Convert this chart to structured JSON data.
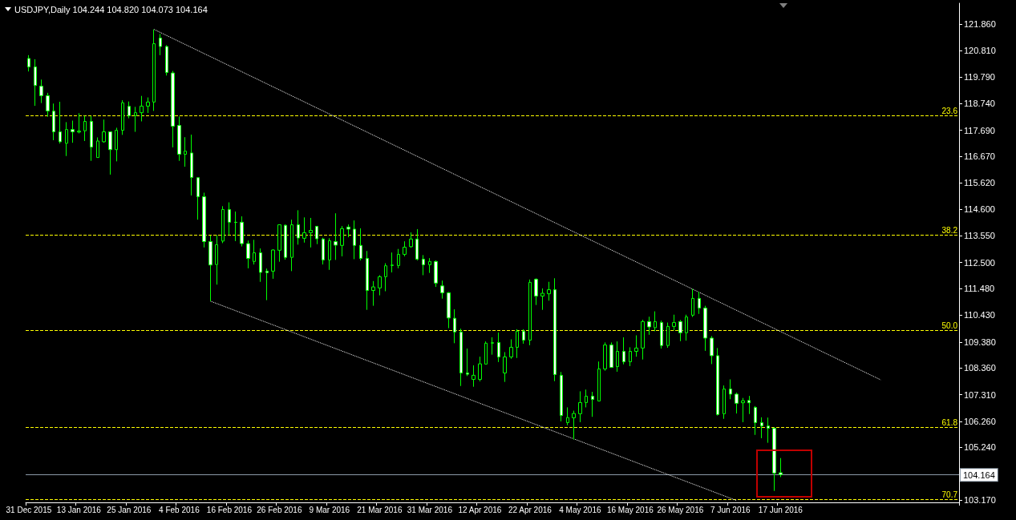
{
  "chart_data": {
    "type": "candlestick",
    "title": "USDJPY,Daily 104.244 104.820 104.073 104.164",
    "color": "#00ff00",
    "categories": [
      "31 Dec 2015",
      null,
      null,
      null,
      null,
      null,
      null,
      null,
      "13 Jan 2016",
      null,
      null,
      null,
      null,
      null,
      null,
      null,
      "25 Jan 2016",
      null,
      null,
      null,
      null,
      null,
      null,
      null,
      "4 Feb 2016",
      null,
      null,
      null,
      null,
      null,
      null,
      null,
      "16 Feb 2016",
      null,
      null,
      null,
      null,
      null,
      null,
      null,
      "26 Feb 2016",
      null,
      null,
      null,
      null,
      null,
      null,
      null,
      "9 Mar 2016",
      null,
      null,
      null,
      null,
      null,
      null,
      null,
      "21 Mar 2016",
      null,
      null,
      null,
      null,
      null,
      null,
      null,
      "31 Mar 2016",
      null,
      null,
      null,
      null,
      null,
      null,
      null,
      "12 Apr 2016",
      null,
      null,
      null,
      null,
      null,
      null,
      null,
      "22 Apr 2016",
      null,
      null,
      null,
      null,
      null,
      null,
      null,
      "4 May 2016",
      null,
      null,
      null,
      null,
      null,
      null,
      null,
      "16 May 2016",
      null,
      null,
      null,
      null,
      null,
      null,
      null,
      "26 May 2016",
      null,
      null,
      null,
      null,
      null,
      null,
      null,
      "7 Jun 2016",
      null,
      null,
      null,
      null,
      null,
      null,
      null,
      "17 Jun 2016",
      null,
      null,
      null,
      null,
      null,
      null,
      null,
      null,
      null,
      null,
      null,
      null,
      null,
      null,
      null,
      null,
      null,
      null,
      null,
      null,
      null,
      null,
      null,
      null,
      null,
      null,
      null,
      null
    ],
    "ohlc": [
      [
        120.51,
        120.64,
        120.0,
        120.18
      ],
      [
        120.18,
        120.48,
        118.65,
        119.45
      ],
      [
        119.42,
        119.68,
        118.76,
        119.05
      ],
      [
        119.05,
        119.16,
        118.22,
        118.45
      ],
      [
        118.44,
        118.74,
        117.3,
        117.63
      ],
      [
        117.63,
        118.81,
        117.17,
        117.24
      ],
      [
        117.18,
        118.01,
        116.68,
        117.72
      ],
      [
        117.72,
        118.07,
        117.2,
        117.63
      ],
      [
        117.62,
        118.36,
        117.57,
        117.66
      ],
      [
        117.67,
        118.26,
        117.27,
        118.04
      ],
      [
        118.04,
        118.25,
        116.49,
        117.03
      ],
      [
        116.62,
        117.41,
        116.62,
        117.27
      ],
      [
        117.24,
        118.11,
        117.2,
        117.63
      ],
      [
        117.63,
        117.63,
        115.95,
        116.93
      ],
      [
        116.93,
        117.79,
        116.47,
        117.69
      ],
      [
        117.69,
        118.87,
        117.51,
        118.77
      ],
      [
        118.63,
        118.82,
        118.16,
        118.26
      ],
      [
        118.27,
        118.61,
        117.63,
        118.38
      ],
      [
        118.38,
        119.04,
        118.04,
        118.64
      ],
      [
        118.64,
        118.98,
        118.37,
        118.8
      ],
      [
        118.8,
        121.65,
        118.45,
        121.09
      ],
      [
        121.31,
        121.47,
        120.64,
        120.98
      ],
      [
        120.98,
        121.03,
        119.84,
        119.96
      ],
      [
        119.94,
        120.02,
        117.02,
        117.85
      ],
      [
        117.88,
        118.23,
        116.49,
        116.75
      ],
      [
        116.75,
        117.42,
        116.26,
        116.87
      ],
      [
        116.8,
        117.52,
        115.13,
        115.84
      ],
      [
        115.83,
        115.83,
        114.18,
        115.08
      ],
      [
        115.08,
        115.24,
        113.09,
        113.32
      ],
      [
        113.32,
        113.56,
        110.98,
        112.4
      ],
      [
        112.42,
        113.57,
        111.63,
        113.2
      ],
      [
        113.34,
        114.71,
        113.26,
        114.58
      ],
      [
        114.58,
        114.86,
        113.57,
        114.08
      ],
      [
        114.08,
        114.5,
        113.34,
        114.07
      ],
      [
        114.08,
        114.31,
        113.13,
        113.24
      ],
      [
        113.24,
        113.36,
        112.27,
        112.66
      ],
      [
        112.54,
        113.39,
        112.42,
        112.88
      ],
      [
        112.88,
        113.05,
        111.74,
        112.11
      ],
      [
        112.16,
        112.26,
        111.02,
        112.1
      ],
      [
        112.16,
        113.02,
        111.86,
        112.99
      ],
      [
        112.98,
        113.98,
        112.53,
        113.98
      ],
      [
        113.96,
        113.99,
        112.61,
        112.7
      ],
      [
        112.7,
        114.18,
        112.16,
        113.98
      ],
      [
        113.98,
        114.55,
        113.2,
        113.46
      ],
      [
        113.45,
        114.27,
        113.28,
        113.67
      ],
      [
        113.67,
        114.25,
        113.09,
        113.76
      ],
      [
        113.92,
        113.92,
        113.22,
        113.43
      ],
      [
        113.42,
        113.47,
        112.42,
        112.6
      ],
      [
        112.6,
        113.45,
        112.21,
        113.35
      ],
      [
        113.32,
        114.43,
        112.6,
        113.18
      ],
      [
        113.17,
        113.93,
        112.74,
        113.83
      ],
      [
        113.89,
        113.99,
        113.49,
        113.81
      ],
      [
        113.81,
        114.15,
        112.63,
        113.17
      ],
      [
        113.17,
        113.84,
        112.58,
        112.66
      ],
      [
        112.66,
        112.95,
        110.64,
        111.4
      ],
      [
        111.4,
        111.77,
        110.8,
        111.54
      ],
      [
        111.5,
        112.0,
        111.21,
        111.94
      ],
      [
        111.94,
        112.47,
        111.37,
        112.37
      ],
      [
        112.38,
        112.89,
        112.11,
        112.4
      ],
      [
        112.38,
        113.03,
        112.27,
        112.82
      ],
      [
        112.82,
        113.33,
        112.74,
        113.1
      ],
      [
        113.12,
        113.68,
        113.08,
        113.42
      ],
      [
        113.42,
        113.81,
        112.58,
        112.63
      ],
      [
        112.63,
        112.79,
        112.0,
        112.41
      ],
      [
        112.41,
        112.67,
        112.09,
        112.54
      ],
      [
        112.54,
        112.58,
        111.54,
        111.69
      ],
      [
        111.58,
        111.79,
        111.08,
        111.31
      ],
      [
        111.31,
        111.34,
        109.92,
        110.32
      ],
      [
        110.31,
        110.66,
        109.33,
        109.77
      ],
      [
        109.77,
        109.9,
        107.65,
        108.16
      ],
      [
        108.16,
        109.12,
        108.04,
        108.11
      ],
      [
        107.91,
        108.46,
        107.62,
        108.07
      ],
      [
        107.91,
        108.8,
        107.83,
        108.52
      ],
      [
        108.51,
        109.4,
        108.51,
        109.33
      ],
      [
        109.33,
        109.56,
        108.88,
        109.35
      ],
      [
        109.36,
        109.75,
        108.59,
        108.79
      ],
      [
        108.16,
        108.98,
        107.81,
        108.79
      ],
      [
        108.79,
        109.48,
        108.72,
        109.17
      ],
      [
        109.17,
        109.88,
        108.75,
        109.8
      ],
      [
        109.8,
        109.88,
        109.31,
        109.45
      ],
      [
        109.45,
        111.83,
        109.25,
        111.72
      ],
      [
        111.84,
        111.88,
        110.83,
        111.18
      ],
      [
        111.18,
        111.48,
        110.64,
        111.29
      ],
      [
        111.27,
        111.74,
        111.0,
        111.43
      ],
      [
        111.43,
        111.88,
        107.84,
        108.1
      ],
      [
        108.07,
        108.2,
        106.26,
        106.49
      ],
      [
        106.21,
        106.81,
        106.11,
        106.41
      ],
      [
        106.4,
        106.68,
        105.55,
        106.57
      ],
      [
        106.56,
        107.44,
        106.23,
        107.0
      ],
      [
        107.0,
        107.51,
        106.81,
        107.25
      ],
      [
        107.25,
        107.42,
        106.44,
        107.12
      ],
      [
        107.06,
        108.61,
        107.06,
        108.32
      ],
      [
        108.32,
        109.36,
        108.25,
        109.26
      ],
      [
        109.26,
        109.36,
        108.36,
        108.38
      ],
      [
        108.41,
        109.4,
        108.21,
        109.01
      ],
      [
        109.01,
        109.56,
        108.5,
        108.6
      ],
      [
        108.6,
        109.17,
        108.43,
        109.01
      ],
      [
        109.01,
        109.64,
        108.8,
        109.14
      ],
      [
        109.14,
        110.25,
        108.69,
        110.18
      ],
      [
        110.18,
        110.37,
        109.66,
        109.97
      ],
      [
        109.94,
        110.58,
        109.8,
        110.18
      ],
      [
        110.14,
        110.22,
        109.12,
        109.24
      ],
      [
        109.24,
        110.14,
        109.15,
        109.99
      ],
      [
        109.99,
        110.45,
        109.83,
        110.14
      ],
      [
        110.18,
        110.24,
        109.41,
        109.74
      ],
      [
        109.74,
        110.45,
        109.43,
        110.36
      ],
      [
        110.43,
        111.46,
        110.36,
        111.09
      ],
      [
        111.09,
        111.35,
        110.48,
        110.71
      ],
      [
        110.71,
        110.8,
        109.03,
        109.53
      ],
      [
        109.53,
        109.61,
        108.51,
        108.84
      ],
      [
        108.84,
        109.14,
        106.49,
        106.53
      ],
      [
        106.56,
        107.67,
        106.36,
        107.53
      ],
      [
        107.53,
        107.91,
        107.13,
        107.33
      ],
      [
        107.33,
        107.39,
        106.57,
        106.97
      ],
      [
        106.99,
        107.18,
        106.23,
        107.07
      ],
      [
        107.08,
        107.26,
        106.55,
        106.99
      ],
      [
        106.81,
        106.86,
        105.73,
        106.21
      ],
      [
        106.21,
        106.42,
        105.6,
        106.08
      ],
      [
        106.08,
        106.41,
        105.42,
        105.99
      ],
      [
        105.99,
        106.02,
        103.53,
        104.23
      ],
      [
        104.244,
        104.82,
        104.073,
        104.164
      ],
      null,
      null,
      null,
      null,
      null,
      null,
      null,
      null,
      null,
      null,
      null,
      null,
      null,
      null,
      null,
      null,
      null,
      null,
      null,
      null,
      null,
      null,
      null,
      null,
      null,
      null,
      null,
      null
    ],
    "series": [
      {
        "type": "line",
        "color": "#ffffff",
        "line_style": "dotted",
        "values": [
          null,
          null,
          null,
          null,
          null,
          null,
          null,
          null,
          null,
          null,
          null,
          null,
          null,
          null,
          null,
          null,
          null,
          null,
          null,
          null,
          121.65,
          null,
          null,
          null,
          null,
          null,
          null,
          null,
          null,
          null,
          null,
          null,
          null,
          null,
          null,
          null,
          null,
          null,
          null,
          null,
          null,
          null,
          null,
          null,
          null,
          null,
          null,
          null,
          null,
          null,
          null,
          null,
          null,
          null,
          null,
          null,
          null,
          null,
          null,
          null,
          null,
          null,
          null,
          null,
          null,
          null,
          null,
          null,
          null,
          null,
          null,
          null,
          null,
          null,
          null,
          null,
          null,
          null,
          null,
          null,
          null,
          null,
          null,
          null,
          null,
          null,
          null,
          null,
          null,
          null,
          null,
          null,
          null,
          null,
          null,
          null,
          null,
          null,
          null,
          null,
          null,
          null,
          null,
          null,
          null,
          null,
          null,
          null,
          null,
          null,
          null,
          null,
          null,
          null,
          null,
          null,
          null,
          null,
          null,
          null,
          null,
          null,
          null,
          null,
          null,
          null,
          null,
          null,
          null,
          null,
          null,
          null,
          null,
          null,
          null,
          null,
          107.89,
          null,
          null,
          null,
          null,
          null,
          null,
          null,
          null,
          null,
          null,
          null,
          null
        ]
      },
      {
        "type": "line",
        "color": "#ffffff",
        "line_style": "dotted",
        "values": [
          null,
          null,
          null,
          null,
          null,
          null,
          null,
          null,
          null,
          null,
          null,
          null,
          null,
          null,
          null,
          null,
          null,
          null,
          null,
          null,
          null,
          null,
          null,
          null,
          null,
          null,
          null,
          null,
          null,
          110.98,
          null,
          null,
          null,
          null,
          null,
          null,
          null,
          null,
          null,
          null,
          null,
          null,
          null,
          null,
          null,
          null,
          null,
          null,
          null,
          null,
          null,
          null,
          null,
          null,
          null,
          null,
          null,
          null,
          null,
          null,
          null,
          null,
          null,
          null,
          null,
          null,
          null,
          null,
          null,
          null,
          null,
          null,
          null,
          null,
          null,
          null,
          null,
          null,
          null,
          null,
          null,
          null,
          null,
          null,
          null,
          null,
          null,
          null,
          null,
          null,
          null,
          null,
          null,
          null,
          null,
          null,
          null,
          null,
          null,
          null,
          null,
          null,
          null,
          null,
          null,
          null,
          null,
          null,
          null,
          null,
          null,
          null,
          null,
          103.15,
          null,
          null,
          null,
          null,
          null,
          null,
          null,
          null,
          null,
          null,
          null,
          null,
          null,
          null,
          null,
          null,
          null,
          null,
          null,
          null,
          null,
          null,
          null,
          null,
          null,
          null,
          null,
          null,
          null,
          null,
          null,
          null,
          null,
          null,
          null
        ]
      }
    ],
    "ylim": [
      103.08,
      122.68
    ],
    "yticks": [
      {
        "value": 103.17,
        "label": "103.170"
      },
      {
        "value": 105.24,
        "label": "105.240"
      },
      {
        "value": 106.26,
        "label": "106.260"
      },
      {
        "value": 107.31,
        "label": "107.310"
      },
      {
        "value": 108.36,
        "label": "108.360"
      },
      {
        "value": 109.38,
        "label": "109.380"
      },
      {
        "value": 110.43,
        "label": "110.430"
      },
      {
        "value": 111.48,
        "label": "111.480"
      },
      {
        "value": 112.5,
        "label": "112.500"
      },
      {
        "value": 113.55,
        "label": "113.550"
      },
      {
        "value": 114.6,
        "label": "114.600"
      },
      {
        "value": 115.62,
        "label": "115.620"
      },
      {
        "value": 116.67,
        "label": "116.670"
      },
      {
        "value": 117.69,
        "label": "117.690"
      },
      {
        "value": 118.74,
        "label": "118.740"
      },
      {
        "value": 119.79,
        "label": "119.790"
      },
      {
        "value": 120.81,
        "label": "120.810"
      },
      {
        "value": 121.86,
        "label": "121.860"
      }
    ],
    "grid": false,
    "annotations": [
      {
        "text": "23.6",
        "y": 118.27
      },
      {
        "text": "38.2",
        "y": 113.58
      },
      {
        "text": "50.0",
        "y": 109.84
      },
      {
        "text": "61.8",
        "y": 106.03
      },
      {
        "text": "70.7",
        "y": 103.2
      }
    ],
    "ref_lines": [
      {
        "axis": "y",
        "value": 118.27,
        "color": "#ffff00",
        "line_style": "dashed"
      },
      {
        "axis": "y",
        "value": 113.58,
        "color": "#ffff00",
        "line_style": "dashed"
      },
      {
        "axis": "y",
        "value": 109.84,
        "color": "#ffff00",
        "line_style": "dashed"
      },
      {
        "axis": "y",
        "value": 106.03,
        "color": "#ffff00",
        "line_style": "dashed"
      },
      {
        "axis": "y",
        "value": 103.2,
        "color": "#ffff00",
        "line_style": "dashed"
      },
      {
        "axis": "y",
        "value": 104.164,
        "label": "104.164",
        "color": "#8c9aa8",
        "line_style": "solid"
      }
    ]
  }
}
